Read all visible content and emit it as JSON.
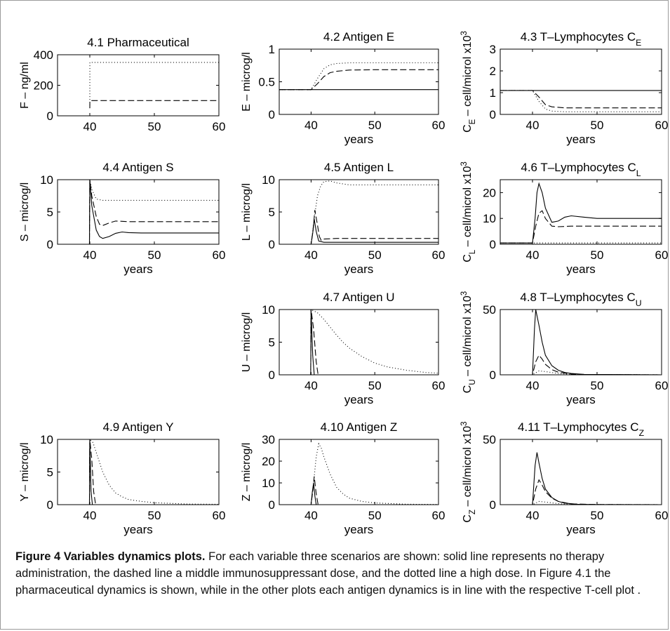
{
  "figure": {
    "caption_title": "Figure 4 Variables dynamics plots.",
    "caption_body": " For each variable three scenarios are shown: solid line represents no therapy administration, the dashed line a middle immunosuppressant dose, and the dotted line a high dose. In Figure 4.1 the pharmaceutical dynamics is shown, while in the other plots each antigen dynamics is in line with the respective T-cell plot ."
  },
  "chart_data": [
    {
      "id": "4.1",
      "type": "line",
      "title": "4.1 Pharmaceutical",
      "xlabel": "",
      "ylabel": "F – ng/ml",
      "xlim": [
        35,
        60
      ],
      "ylim": [
        0,
        400
      ],
      "xticks": [
        40,
        50,
        60
      ],
      "yticks": [
        0,
        200,
        400
      ],
      "series": [
        {
          "style": "dashed",
          "x": [
            40,
            40.01,
            60
          ],
          "y": [
            50,
            100,
            100
          ]
        },
        {
          "style": "dotted",
          "x": [
            40,
            40.01,
            60
          ],
          "y": [
            50,
            350,
            350
          ]
        }
      ]
    },
    {
      "id": "4.2",
      "type": "line",
      "title": "4.2 Antigen E",
      "xlabel": "years",
      "ylabel": "E – microg/l",
      "xlim": [
        35,
        60
      ],
      "ylim": [
        0,
        1
      ],
      "xticks": [
        40,
        50,
        60
      ],
      "yticks": [
        0,
        0.5,
        1
      ],
      "series": [
        {
          "style": "solid",
          "x": [
            35,
            60
          ],
          "y": [
            0.38,
            0.38
          ]
        },
        {
          "style": "dashed",
          "x": [
            35,
            40,
            41,
            42,
            43,
            44,
            46,
            50,
            60
          ],
          "y": [
            0.38,
            0.38,
            0.47,
            0.58,
            0.64,
            0.66,
            0.68,
            0.685,
            0.685
          ]
        },
        {
          "style": "dotted",
          "x": [
            35,
            40,
            41,
            42,
            43,
            44,
            46,
            50,
            60
          ],
          "y": [
            0.38,
            0.38,
            0.55,
            0.7,
            0.76,
            0.78,
            0.79,
            0.79,
            0.79
          ]
        }
      ]
    },
    {
      "id": "4.3",
      "type": "line",
      "title": "4.3 T–Lymphocytes C_E",
      "xlabel": "years",
      "ylabel": "C_E – cell/microl x10^3",
      "xlim": [
        35,
        60
      ],
      "ylim": [
        0,
        3
      ],
      "xticks": [
        40,
        50,
        60
      ],
      "yticks": [
        0,
        1,
        2,
        3
      ],
      "series": [
        {
          "style": "solid",
          "x": [
            35,
            60
          ],
          "y": [
            1.1,
            1.1
          ]
        },
        {
          "style": "dashed",
          "x": [
            35,
            40,
            41,
            42,
            43,
            45,
            50,
            60
          ],
          "y": [
            1.1,
            1.1,
            0.8,
            0.45,
            0.35,
            0.3,
            0.3,
            0.3
          ]
        },
        {
          "style": "dotted",
          "x": [
            35,
            40,
            41,
            42,
            43,
            45,
            50,
            60
          ],
          "y": [
            1.1,
            1.1,
            0.6,
            0.25,
            0.15,
            0.12,
            0.12,
            0.12
          ]
        }
      ]
    },
    {
      "id": "4.4",
      "type": "line",
      "title": "4.4 Antigen S",
      "xlabel": "years",
      "ylabel": "S – microg/l",
      "xlim": [
        35,
        60
      ],
      "ylim": [
        0,
        10
      ],
      "xticks": [
        40,
        50,
        60
      ],
      "yticks": [
        0,
        5,
        10
      ],
      "series": [
        {
          "style": "solid",
          "x": [
            35,
            39.95,
            40,
            40.3,
            41,
            41.5,
            42,
            43,
            44,
            45,
            46,
            48,
            60
          ],
          "y": [
            0,
            0,
            10,
            6,
            2.2,
            1.2,
            0.9,
            1.2,
            1.7,
            1.9,
            1.8,
            1.75,
            1.75
          ]
        },
        {
          "style": "dashed",
          "x": [
            35,
            39.95,
            40,
            40.3,
            41,
            41.5,
            42,
            43,
            44,
            46,
            60
          ],
          "y": [
            0,
            0,
            10,
            7.5,
            4.3,
            3.1,
            2.9,
            3.3,
            3.6,
            3.5,
            3.5
          ]
        },
        {
          "style": "dotted",
          "x": [
            35,
            39.95,
            40,
            40.3,
            41,
            42,
            43,
            60
          ],
          "y": [
            0,
            0,
            10,
            8.5,
            7,
            6.8,
            6.8,
            6.8
          ]
        }
      ]
    },
    {
      "id": "4.5",
      "type": "line",
      "title": "4.5 Antigen L",
      "xlabel": "years",
      "ylabel": "L – microg/l",
      "xlim": [
        35,
        60
      ],
      "ylim": [
        0,
        10
      ],
      "xticks": [
        40,
        50,
        60
      ],
      "yticks": [
        0,
        5,
        10
      ],
      "series": [
        {
          "style": "solid",
          "x": [
            35,
            40,
            40.3,
            40.5,
            40.8,
            41.2,
            42,
            44,
            60
          ],
          "y": [
            0,
            0,
            2,
            3.9,
            2,
            0.5,
            0.3,
            0.3,
            0.3
          ]
        },
        {
          "style": "dashed",
          "x": [
            35,
            40,
            40.3,
            40.6,
            41,
            41.3,
            41.6,
            42,
            44,
            60
          ],
          "y": [
            0,
            0,
            2,
            5.3,
            3,
            1.2,
            0.6,
            0.8,
            0.9,
            0.9
          ]
        },
        {
          "style": "dotted",
          "x": [
            35,
            40,
            40.5,
            41,
            41.5,
            42,
            43,
            44,
            46,
            60
          ],
          "y": [
            0,
            0,
            4,
            7.5,
            9,
            9.7,
            9.8,
            9.5,
            9.2,
            9.2
          ]
        }
      ]
    },
    {
      "id": "4.6",
      "type": "line",
      "title": "4.6 T–Lymphocytes C_L",
      "xlabel": "years",
      "ylabel": "C_L – cell/microl x10^3",
      "xlim": [
        35,
        60
      ],
      "ylim": [
        0,
        25
      ],
      "xticks": [
        40,
        50,
        60
      ],
      "yticks": [
        0,
        10,
        20
      ],
      "series": [
        {
          "style": "solid",
          "x": [
            35,
            40,
            40.4,
            40.7,
            41,
            41.5,
            42,
            43,
            44,
            45,
            46,
            48,
            50,
            60
          ],
          "y": [
            0.5,
            0.5,
            10,
            20,
            23.5,
            20,
            14,
            8.5,
            9,
            10.5,
            11,
            10.5,
            10,
            10
          ]
        },
        {
          "style": "dashed",
          "x": [
            35,
            40,
            40.5,
            41,
            41.5,
            42,
            43,
            44,
            46,
            60
          ],
          "y": [
            0.5,
            0.5,
            7,
            12,
            13,
            10,
            7,
            6.8,
            7,
            7
          ]
        },
        {
          "style": "dotted",
          "x": [
            35,
            60
          ],
          "y": [
            0.5,
            0.5
          ]
        }
      ]
    },
    {
      "id": "4.7",
      "type": "line",
      "title": "4.7 Antigen U",
      "xlabel": "years",
      "ylabel": "U – microg/l",
      "xlim": [
        35,
        60
      ],
      "ylim": [
        0,
        10
      ],
      "xticks": [
        40,
        50,
        60
      ],
      "yticks": [
        0,
        5,
        10
      ],
      "series": [
        {
          "style": "solid",
          "x": [
            35,
            39.95,
            40,
            40.25,
            40.5,
            60
          ],
          "y": [
            0,
            0,
            10,
            3,
            0,
            0
          ]
        },
        {
          "style": "dashed",
          "x": [
            35,
            39.95,
            40,
            40.4,
            40.8,
            41.1,
            60
          ],
          "y": [
            0,
            0,
            10,
            7,
            2,
            0,
            0
          ]
        },
        {
          "style": "dotted",
          "x": [
            35,
            39.95,
            40,
            41,
            42,
            43,
            44,
            45,
            46,
            48,
            50,
            52,
            55,
            58,
            60
          ],
          "y": [
            0,
            0,
            10,
            9.5,
            8.5,
            7.3,
            6.1,
            5.0,
            4.1,
            2.8,
            1.8,
            1.2,
            0.7,
            0.35,
            0.25
          ]
        }
      ]
    },
    {
      "id": "4.8",
      "type": "line",
      "title": "4.8 T–Lymphocytes C_U",
      "xlabel": "years",
      "ylabel": "C_U – cell/microl x10^3",
      "xlim": [
        35,
        60
      ],
      "ylim": [
        0,
        50
      ],
      "xticks": [
        40,
        50,
        60
      ],
      "yticks": [
        0,
        50
      ],
      "series": [
        {
          "style": "solid",
          "x": [
            35,
            40,
            40.3,
            40.5,
            41,
            41.5,
            42,
            43,
            44,
            45,
            46,
            48,
            60
          ],
          "y": [
            0,
            0,
            35,
            50,
            38,
            25,
            15,
            7,
            3.5,
            1.8,
            1,
            0.3,
            0
          ]
        },
        {
          "style": "dashed",
          "x": [
            35,
            40,
            40.5,
            41,
            41.5,
            42,
            43,
            44,
            46,
            48,
            60
          ],
          "y": [
            0,
            0,
            10,
            15,
            12,
            8,
            4,
            2,
            0.6,
            0.2,
            0
          ]
        },
        {
          "style": "dotted",
          "x": [
            35,
            40,
            41,
            42,
            44,
            46,
            60
          ],
          "y": [
            0,
            0,
            3,
            2.5,
            1,
            0.3,
            0
          ]
        }
      ]
    },
    {
      "id": "4.9",
      "type": "line",
      "title": "4.9 Antigen Y",
      "xlabel": "years",
      "ylabel": "Y – microg/l",
      "xlim": [
        35,
        60
      ],
      "ylim": [
        0,
        10
      ],
      "xticks": [
        40,
        50,
        60
      ],
      "yticks": [
        0,
        5,
        10
      ],
      "series": [
        {
          "style": "solid",
          "x": [
            35,
            39.95,
            40,
            40.2,
            40.4,
            60
          ],
          "y": [
            0,
            0,
            10,
            2,
            0,
            0
          ]
        },
        {
          "style": "dashed",
          "x": [
            35,
            39.95,
            40,
            40.3,
            40.6,
            40.9,
            60
          ],
          "y": [
            0,
            0,
            10,
            7,
            2,
            0,
            0
          ]
        },
        {
          "style": "dotted",
          "x": [
            35,
            39.95,
            40,
            40.5,
            41,
            42,
            43,
            44,
            45,
            46,
            48,
            50,
            55,
            60
          ],
          "y": [
            0,
            0,
            10,
            9.5,
            8,
            5,
            3,
            1.8,
            1.2,
            0.8,
            0.5,
            0.3,
            0.1,
            0.05
          ]
        }
      ]
    },
    {
      "id": "4.10",
      "type": "line",
      "title": "4.10 Antigen Z",
      "xlabel": "years",
      "ylabel": "Z – microg/l",
      "xlim": [
        35,
        60
      ],
      "ylim": [
        0,
        30
      ],
      "xticks": [
        40,
        50,
        60
      ],
      "yticks": [
        0,
        10,
        20,
        30
      ],
      "series": [
        {
          "style": "solid",
          "x": [
            35,
            40,
            40.2,
            40.4,
            40.6,
            40.8,
            60
          ],
          "y": [
            0,
            0,
            6,
            10,
            4,
            0,
            0
          ]
        },
        {
          "style": "dashed",
          "x": [
            35,
            40,
            40.3,
            40.5,
            40.8,
            41.1,
            60
          ],
          "y": [
            0,
            0,
            7,
            13,
            5,
            0,
            0
          ]
        },
        {
          "style": "dotted",
          "x": [
            35,
            40,
            40.4,
            40.8,
            41.2,
            41.6,
            42,
            43,
            44,
            45,
            46,
            48,
            50,
            55,
            60
          ],
          "y": [
            0,
            0,
            10,
            22,
            28,
            26,
            22,
            14,
            8,
            5,
            3,
            1.5,
            0.8,
            0.2,
            0.1
          ]
        }
      ]
    },
    {
      "id": "4.11",
      "type": "line",
      "title": "4.11 T–Lymphocytes C_Z",
      "xlabel": "years",
      "ylabel": "C_Z – cell/microl x10^3",
      "xlim": [
        35,
        60
      ],
      "ylim": [
        0,
        50
      ],
      "xticks": [
        40,
        50,
        60
      ],
      "yticks": [
        0,
        50
      ],
      "series": [
        {
          "style": "solid",
          "x": [
            35,
            40,
            40.4,
            40.7,
            41,
            41.5,
            42,
            43,
            44,
            45,
            47,
            50,
            60
          ],
          "y": [
            0,
            0,
            30,
            40,
            32,
            20,
            12,
            5.5,
            2.5,
            1.2,
            0.3,
            0.05,
            0
          ]
        },
        {
          "style": "dashed",
          "x": [
            35,
            40,
            40.5,
            41,
            41.5,
            42,
            43,
            44,
            46,
            50,
            60
          ],
          "y": [
            0,
            0,
            12,
            19,
            15,
            10,
            5,
            2.5,
            0.6,
            0.1,
            0
          ]
        },
        {
          "style": "dotted",
          "x": [
            35,
            40,
            41,
            42,
            44,
            46,
            60
          ],
          "y": [
            0,
            0,
            2.5,
            2,
            0.8,
            0.2,
            0
          ]
        }
      ]
    }
  ]
}
